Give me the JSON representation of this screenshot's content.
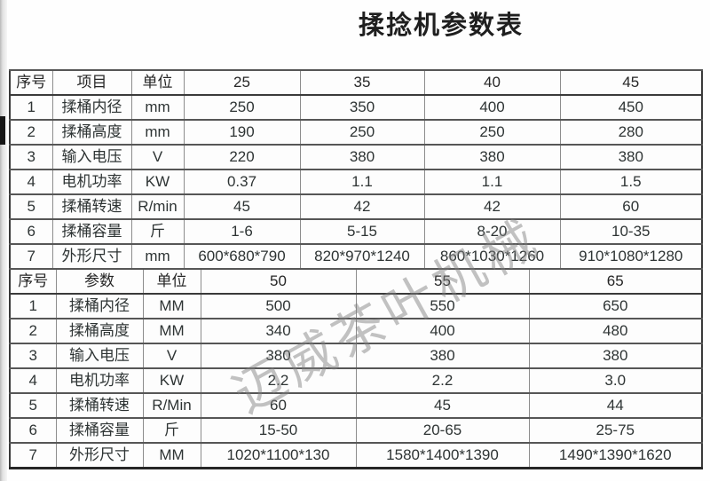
{
  "title": "揉捻机参数表",
  "watermark": "迈威茶叶机械",
  "tables": [
    {
      "name": "upper-spec-table",
      "headers": [
        "序号",
        "项目",
        "单位",
        "25",
        "35",
        "40",
        "45"
      ],
      "rows": [
        [
          "1",
          "揉桶内径",
          "mm",
          "250",
          "350",
          "400",
          "450"
        ],
        [
          "2",
          "揉桶高度",
          "mm",
          "190",
          "250",
          "250",
          "280"
        ],
        [
          "3",
          "输入电压",
          "V",
          "220",
          "380",
          "380",
          "380"
        ],
        [
          "4",
          "电机功率",
          "KW",
          "0.37",
          "1.1",
          "1.1",
          "1.5"
        ],
        [
          "5",
          "揉桶转速",
          "R/min",
          "45",
          "42",
          "42",
          "60"
        ],
        [
          "6",
          "揉桶容量",
          "斤",
          "1-6",
          "5-15",
          "8-20",
          "10-35"
        ],
        [
          "7",
          "外形尺寸",
          "mm",
          "600*680*790",
          "820*970*1240",
          "860*1030*1260",
          "910*1080*1280"
        ]
      ]
    },
    {
      "name": "lower-spec-table",
      "headers": [
        "序号",
        "参数",
        "单位",
        "50",
        "55",
        "65"
      ],
      "rows": [
        [
          "1",
          "揉桶内径",
          "MM",
          "500",
          "550",
          "650"
        ],
        [
          "2",
          "揉桶高度",
          "MM",
          "340",
          "400",
          "480"
        ],
        [
          "3",
          "输入电压",
          "V",
          "380",
          "380",
          "380"
        ],
        [
          "4",
          "电机功率",
          "KW",
          "2.2",
          "2.2",
          "3.0"
        ],
        [
          "5",
          "揉桶转速",
          "R/Min",
          "60",
          "45",
          "44"
        ],
        [
          "6",
          "揉桶容量",
          "斤",
          "15-50",
          "20-65",
          "25-75"
        ],
        [
          "7",
          "外形尺寸",
          "MM",
          "1020*1100*130",
          "1580*1400*1390",
          "1490*1390*1620"
        ]
      ]
    }
  ],
  "colors": {
    "background": "#fefefe",
    "text": "#2e3434",
    "title_text": "#1f1f1f",
    "grid_vertical": "#8c8c8c",
    "grid_horizontal": "#565656",
    "table_outline": "#3a3a3a",
    "watermark": "#808080",
    "scan_edge": "#b9b9b9",
    "left_mark": "#161616"
  }
}
